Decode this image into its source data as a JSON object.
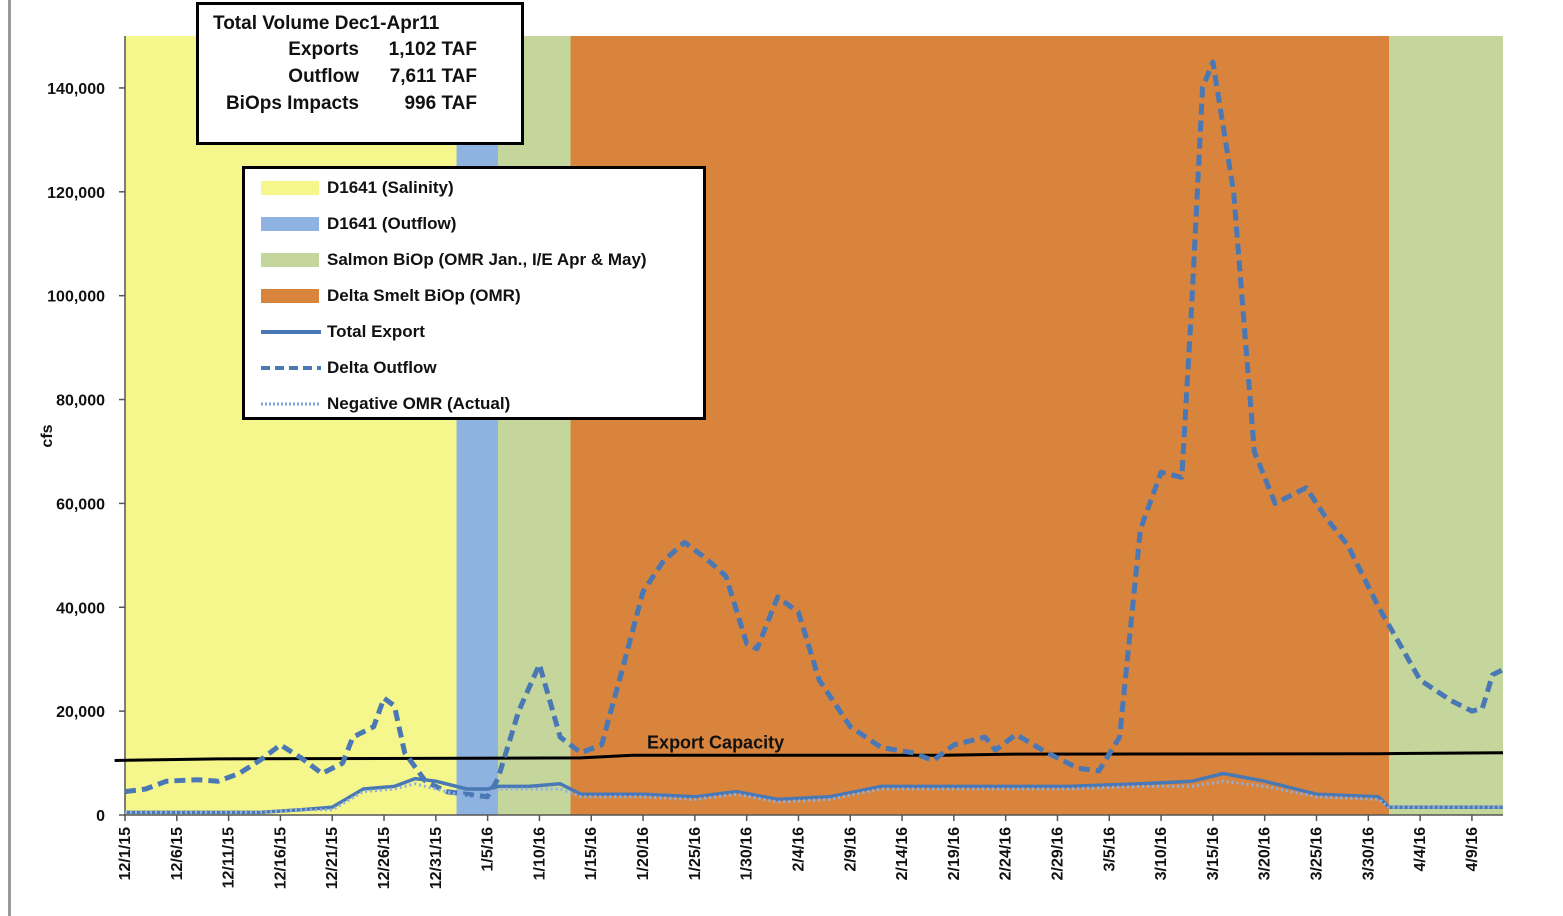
{
  "summary": {
    "title": "Total Volume Dec1-Apr11",
    "rows": [
      {
        "label": "Exports",
        "value": "1,102 TAF"
      },
      {
        "label": "Outflow",
        "value": "7,611 TAF"
      },
      {
        "label": "BiOps Impacts",
        "value": "996 TAF"
      }
    ]
  },
  "legend": {
    "items": [
      {
        "label": "D1641 (Salinity)",
        "kind": "swatch",
        "color": "#f5f78c"
      },
      {
        "label": "D1641 (Outflow)",
        "kind": "swatch",
        "color": "#8eb3e0"
      },
      {
        "label": "Salmon BiOp (OMR Jan., I/E Apr & May)",
        "kind": "swatch",
        "color": "#c4d69b"
      },
      {
        "label": "Delta Smelt BiOp (OMR)",
        "kind": "swatch",
        "color": "#d9843c"
      },
      {
        "label": "Total Export",
        "kind": "solid",
        "color": "#4a78b5"
      },
      {
        "label": "Delta Outflow",
        "kind": "dashed",
        "color": "#4a78b5"
      },
      {
        "label": "Negative OMR (Actual)",
        "kind": "dotted",
        "color": "#7fa3d6"
      }
    ]
  },
  "chart_data": {
    "type": "line",
    "ylabel": "cfs",
    "xlabel": "",
    "ylim": [
      0,
      150000
    ],
    "x_start": "12/1/15",
    "x_end": "4/12/16",
    "yticks": [
      0,
      20000,
      40000,
      60000,
      80000,
      100000,
      120000,
      140000
    ],
    "ytick_labels": [
      "0",
      "20,000",
      "40,000",
      "60,000",
      "80,000",
      "100,000",
      "120,000",
      "140,000"
    ],
    "xtick_labels": [
      "12/1/15",
      "12/6/15",
      "12/11/15",
      "12/16/15",
      "12/21/15",
      "12/26/15",
      "12/31/15",
      "1/5/16",
      "1/10/16",
      "1/15/16",
      "1/20/16",
      "1/25/16",
      "1/30/16",
      "2/4/16",
      "2/9/16",
      "2/14/16",
      "2/19/16",
      "2/24/16",
      "2/29/16",
      "3/5/16",
      "3/10/16",
      "3/15/16",
      "3/20/16",
      "3/25/16",
      "3/30/16",
      "4/4/16",
      "4/9/16"
    ],
    "regions": [
      {
        "start": "12/1/15",
        "end": "1/2/16",
        "name": "D1641 (Salinity)",
        "color": "#f5f78c"
      },
      {
        "start": "1/2/16",
        "end": "1/6/16",
        "name": "D1641 (Outflow)",
        "color": "#8eb3e0"
      },
      {
        "start": "1/6/16",
        "end": "1/13/16",
        "name": "Salmon BiOp (OMR Jan., I/E Apr & May)",
        "color": "#c4d69b"
      },
      {
        "start": "1/13/16",
        "end": "4/1/16",
        "name": "Delta Smelt BiOp (OMR)",
        "color": "#d9843c"
      },
      {
        "start": "4/1/16",
        "end": "4/12/16",
        "name": "Salmon BiOp (OMR Jan., I/E Apr & May)",
        "color": "#c4d69b"
      }
    ],
    "annotation": {
      "text": "Export Capacity",
      "x": "1/27/16"
    },
    "export_capacity": [
      {
        "x": "11/30/15",
        "y": 10500
      },
      {
        "x": "12/10/15",
        "y": 10800
      },
      {
        "x": "1/14/16",
        "y": 11000
      },
      {
        "x": "1/19/16",
        "y": 11500
      },
      {
        "x": "2/18/16",
        "y": 11500
      },
      {
        "x": "2/24/16",
        "y": 11700
      },
      {
        "x": "3/31/16",
        "y": 11800
      },
      {
        "x": "4/12/16",
        "y": 12000
      }
    ],
    "series": [
      {
        "name": "Delta Outflow",
        "color": "#4a78b5",
        "style": "dashed",
        "points": [
          {
            "x": "12/1/15",
            "y": 4500
          },
          {
            "x": "12/3/15",
            "y": 5000
          },
          {
            "x": "12/5/15",
            "y": 6500
          },
          {
            "x": "12/8/15",
            "y": 6800
          },
          {
            "x": "12/10/15",
            "y": 6500
          },
          {
            "x": "12/12/15",
            "y": 8000
          },
          {
            "x": "12/14/15",
            "y": 10500
          },
          {
            "x": "12/16/15",
            "y": 13500
          },
          {
            "x": "12/18/15",
            "y": 11000
          },
          {
            "x": "12/20/15",
            "y": 8000
          },
          {
            "x": "12/22/15",
            "y": 10000
          },
          {
            "x": "12/23/15",
            "y": 15000
          },
          {
            "x": "12/25/15",
            "y": 17000
          },
          {
            "x": "12/26/15",
            "y": 22500
          },
          {
            "x": "12/27/15",
            "y": 21000
          },
          {
            "x": "12/28/15",
            "y": 12000
          },
          {
            "x": "12/30/15",
            "y": 6500
          },
          {
            "x": "1/1/16",
            "y": 4500
          },
          {
            "x": "1/3/16",
            "y": 4000
          },
          {
            "x": "1/5/16",
            "y": 3500
          },
          {
            "x": "1/6/16",
            "y": 7000
          },
          {
            "x": "1/8/16",
            "y": 20000
          },
          {
            "x": "1/10/16",
            "y": 29000
          },
          {
            "x": "1/12/16",
            "y": 15000
          },
          {
            "x": "1/14/16",
            "y": 12000
          },
          {
            "x": "1/16/16",
            "y": 13500
          },
          {
            "x": "1/18/16",
            "y": 28000
          },
          {
            "x": "1/20/16",
            "y": 43000
          },
          {
            "x": "1/22/16",
            "y": 49000
          },
          {
            "x": "1/24/16",
            "y": 52500
          },
          {
            "x": "1/26/16",
            "y": 49500
          },
          {
            "x": "1/28/16",
            "y": 46000
          },
          {
            "x": "1/30/16",
            "y": 33000
          },
          {
            "x": "1/31/16",
            "y": 32000
          },
          {
            "x": "2/2/16",
            "y": 42000
          },
          {
            "x": "2/4/16",
            "y": 39000
          },
          {
            "x": "2/6/16",
            "y": 26000
          },
          {
            "x": "2/9/16",
            "y": 17000
          },
          {
            "x": "2/12/16",
            "y": 13000
          },
          {
            "x": "2/15/16",
            "y": 12000
          },
          {
            "x": "2/17/16",
            "y": 10500
          },
          {
            "x": "2/19/16",
            "y": 13500
          },
          {
            "x": "2/22/16",
            "y": 15000
          },
          {
            "x": "2/23/16",
            "y": 12500
          },
          {
            "x": "2/25/16",
            "y": 15500
          },
          {
            "x": "2/28/16",
            "y": 12000
          },
          {
            "x": "3/2/16",
            "y": 9000
          },
          {
            "x": "3/4/16",
            "y": 8500
          },
          {
            "x": "3/6/16",
            "y": 15000
          },
          {
            "x": "3/8/16",
            "y": 55000
          },
          {
            "x": "3/10/16",
            "y": 66000
          },
          {
            "x": "3/12/16",
            "y": 65000
          },
          {
            "x": "3/13/16",
            "y": 100000
          },
          {
            "x": "3/14/16",
            "y": 140000
          },
          {
            "x": "3/15/16",
            "y": 145000
          },
          {
            "x": "3/17/16",
            "y": 120000
          },
          {
            "x": "3/19/16",
            "y": 70000
          },
          {
            "x": "3/21/16",
            "y": 60000
          },
          {
            "x": "3/24/16",
            "y": 63000
          },
          {
            "x": "3/26/16",
            "y": 57000
          },
          {
            "x": "3/28/16",
            "y": 52000
          },
          {
            "x": "3/31/16",
            "y": 40000
          },
          {
            "x": "4/2/16",
            "y": 33000
          },
          {
            "x": "4/4/16",
            "y": 26000
          },
          {
            "x": "4/7/16",
            "y": 22000
          },
          {
            "x": "4/9/16",
            "y": 20000
          },
          {
            "x": "4/10/16",
            "y": 20500
          },
          {
            "x": "4/11/16",
            "y": 27000
          },
          {
            "x": "4/12/16",
            "y": 28000
          }
        ]
      },
      {
        "name": "Total Export",
        "color": "#4a78b5",
        "style": "solid",
        "points": [
          {
            "x": "12/1/15",
            "y": 500
          },
          {
            "x": "12/14/15",
            "y": 500
          },
          {
            "x": "12/18/15",
            "y": 1000
          },
          {
            "x": "12/21/15",
            "y": 1500
          },
          {
            "x": "12/24/15",
            "y": 5000
          },
          {
            "x": "12/27/15",
            "y": 5500
          },
          {
            "x": "12/29/15",
            "y": 7000
          },
          {
            "x": "12/31/15",
            "y": 6500
          },
          {
            "x": "1/3/16",
            "y": 5000
          },
          {
            "x": "1/5/16",
            "y": 5000
          },
          {
            "x": "1/6/16",
            "y": 5500
          },
          {
            "x": "1/9/16",
            "y": 5500
          },
          {
            "x": "1/12/16",
            "y": 6000
          },
          {
            "x": "1/14/16",
            "y": 4000
          },
          {
            "x": "1/20/16",
            "y": 4000
          },
          {
            "x": "1/25/16",
            "y": 3500
          },
          {
            "x": "1/29/16",
            "y": 4500
          },
          {
            "x": "2/2/16",
            "y": 3000
          },
          {
            "x": "2/7/16",
            "y": 3500
          },
          {
            "x": "2/12/16",
            "y": 5500
          },
          {
            "x": "2/20/16",
            "y": 5500
          },
          {
            "x": "3/1/16",
            "y": 5500
          },
          {
            "x": "3/8/16",
            "y": 6000
          },
          {
            "x": "3/13/16",
            "y": 6500
          },
          {
            "x": "3/16/16",
            "y": 8000
          },
          {
            "x": "3/20/16",
            "y": 6500
          },
          {
            "x": "3/25/16",
            "y": 4000
          },
          {
            "x": "3/31/16",
            "y": 3500
          },
          {
            "x": "4/1/16",
            "y": 1500
          },
          {
            "x": "4/12/16",
            "y": 1500
          }
        ]
      },
      {
        "name": "Negative OMR (Actual)",
        "color": "#8fb0de",
        "style": "dotted",
        "points": [
          {
            "x": "12/1/15",
            "y": 500
          },
          {
            "x": "12/14/15",
            "y": 500
          },
          {
            "x": "12/18/15",
            "y": 1000
          },
          {
            "x": "12/21/15",
            "y": 1000
          },
          {
            "x": "12/24/15",
            "y": 4500
          },
          {
            "x": "12/27/15",
            "y": 5000
          },
          {
            "x": "12/29/15",
            "y": 6000
          },
          {
            "x": "12/31/15",
            "y": 5000
          },
          {
            "x": "1/3/16",
            "y": 3500
          },
          {
            "x": "1/5/16",
            "y": 2500
          },
          {
            "x": "1/6/16",
            "y": 5000
          },
          {
            "x": "1/9/16",
            "y": 5000
          },
          {
            "x": "1/12/16",
            "y": 5000
          },
          {
            "x": "1/14/16",
            "y": 3500
          },
          {
            "x": "1/20/16",
            "y": 3500
          },
          {
            "x": "1/25/16",
            "y": 3000
          },
          {
            "x": "1/29/16",
            "y": 4000
          },
          {
            "x": "2/2/16",
            "y": 2500
          },
          {
            "x": "2/7/16",
            "y": 3000
          },
          {
            "x": "2/12/16",
            "y": 5000
          },
          {
            "x": "2/20/16",
            "y": 5000
          },
          {
            "x": "3/1/16",
            "y": 5000
          },
          {
            "x": "3/8/16",
            "y": 5500
          },
          {
            "x": "3/13/16",
            "y": 5500
          },
          {
            "x": "3/16/16",
            "y": 6500
          },
          {
            "x": "3/20/16",
            "y": 5500
          },
          {
            "x": "3/25/16",
            "y": 3500
          },
          {
            "x": "3/31/16",
            "y": 3000
          },
          {
            "x": "4/1/16",
            "y": 1500
          },
          {
            "x": "4/12/16",
            "y": 1500
          }
        ]
      }
    ]
  }
}
